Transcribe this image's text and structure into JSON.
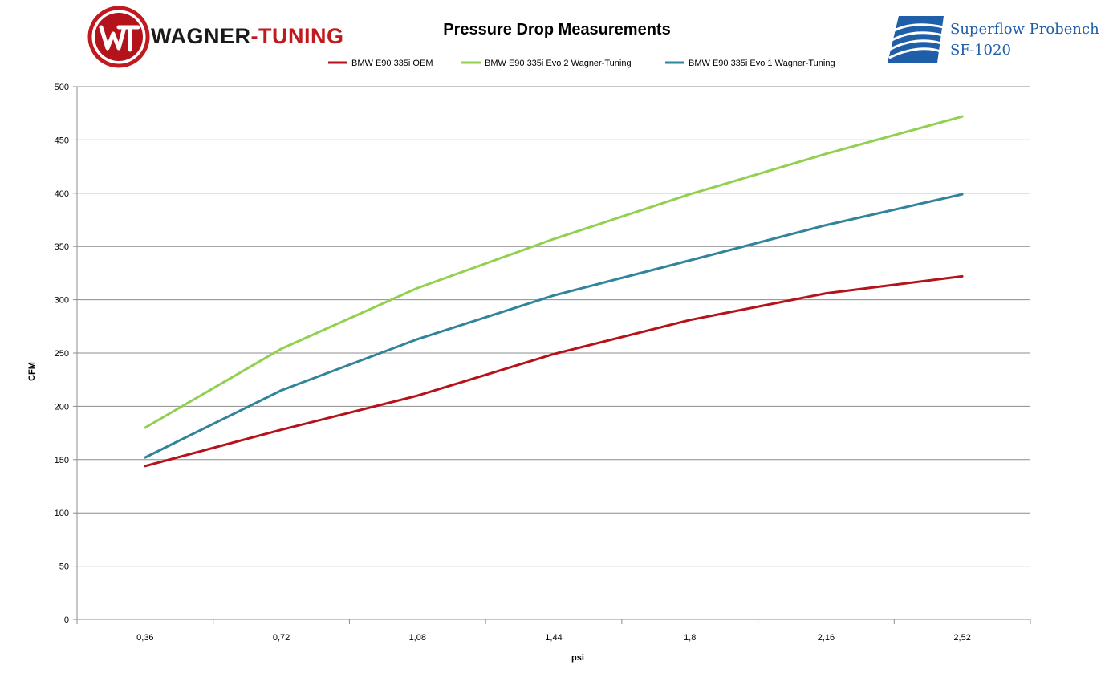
{
  "branding": {
    "left_logo": {
      "icon": "wagner-tuning-emblem-icon",
      "word_1": "WAGNER",
      "word_2": "-TUNING",
      "colors": {
        "dark": "#1a1a1a",
        "red": "#c01a1f"
      }
    },
    "right_logo": {
      "icon": "superflow-waves-icon",
      "line_1": "Superflow Probench",
      "line_2": "SF-1020",
      "color": "#1f5ea8"
    }
  },
  "chart_data": {
    "type": "line",
    "title": "Pressure Drop Measurements",
    "xlabel": "psi",
    "ylabel": "CFM",
    "categories": [
      "0,36",
      "0,72",
      "1,08",
      "1,44",
      "1,8",
      "2,16",
      "2,52"
    ],
    "ylim": [
      0,
      500
    ],
    "yticks": [
      0,
      50,
      100,
      150,
      200,
      250,
      300,
      350,
      400,
      450,
      500
    ],
    "grid": true,
    "legend_position": "top",
    "series": [
      {
        "name": "BMW E90 335i OEM",
        "color": "#b5121b",
        "values": [
          144,
          178,
          210,
          249,
          281,
          306,
          322
        ]
      },
      {
        "name": "BMW E90 335i Evo 2 Wagner-Tuning",
        "color": "#92d050",
        "values": [
          180,
          254,
          311,
          357,
          399,
          437,
          472
        ]
      },
      {
        "name": "BMW E90 335i Evo 1 Wagner-Tuning",
        "color": "#31849b",
        "values": [
          152,
          215,
          263,
          304,
          337,
          370,
          399
        ]
      }
    ]
  }
}
